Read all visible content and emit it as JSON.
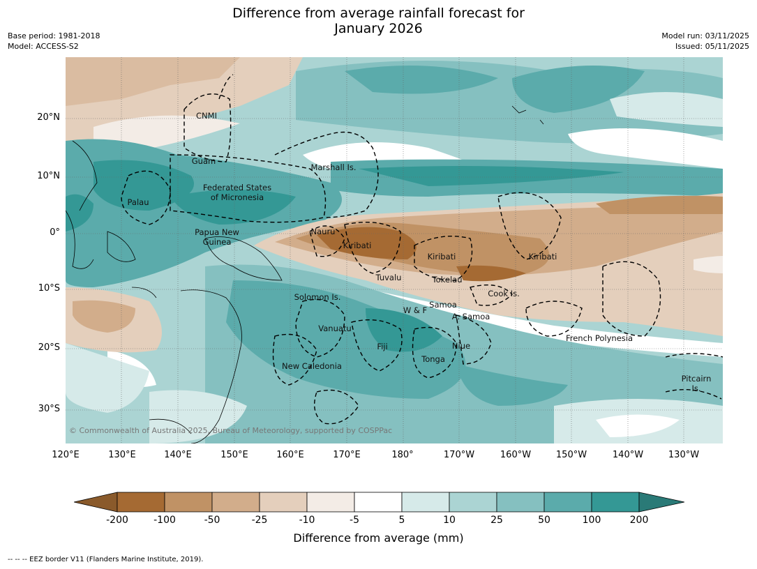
{
  "title": "Difference from average rainfall forecast for\nJanuary 2026",
  "meta_left": "Base period: 1981-2018\nModel: ACCESS-S2",
  "meta_right": "Model run: 03/11/2025\nIssued: 05/11/2025",
  "colors": {
    "dry_200": "#a56a33",
    "dry_100": "#c09265",
    "dry_50": "#d2ad8b",
    "dry_25": "#e4cfbc",
    "dry_10": "#f3ece6",
    "neutral": "#ffffff",
    "wet_5": "#d6eae9",
    "wet_10": "#abd4d3",
    "wet_25": "#85c0c0",
    "wet_50": "#5babab",
    "wet_100": "#349895",
    "wet_200": "#2a7a77",
    "dry_extreme": "#8a5a2b"
  },
  "y_axis": [
    "20°N",
    "10°N",
    "0°",
    "10°S",
    "20°S",
    "30°S"
  ],
  "x_axis": [
    "120°E",
    "130°E",
    "140°E",
    "150°E",
    "160°E",
    "170°E",
    "180°",
    "170°W",
    "160°W",
    "150°W",
    "140°W",
    "130°W"
  ],
  "regions": [
    {
      "name": "CNMI"
    },
    {
      "name": "Guam"
    },
    {
      "name": "Marshall Is."
    },
    {
      "name": "Federated States"
    },
    {
      "name": "of Micronesia"
    },
    {
      "name": "Palau"
    },
    {
      "name": "Papua New"
    },
    {
      "name": "Guinea"
    },
    {
      "name": "Nauru"
    },
    {
      "name": "Kiribati"
    },
    {
      "name": "Kiribati"
    },
    {
      "name": "Kiribati"
    },
    {
      "name": "Tuvalu"
    },
    {
      "name": "Tokelau"
    },
    {
      "name": "Cook Is."
    },
    {
      "name": "Solomon Is."
    },
    {
      "name": "Samoa"
    },
    {
      "name": "W & F"
    },
    {
      "name": "A. Samoa"
    },
    {
      "name": "Vanuatu"
    },
    {
      "name": "Fiji"
    },
    {
      "name": "Niue"
    },
    {
      "name": "Tonga"
    },
    {
      "name": "French Polynesia"
    },
    {
      "name": "New Caledonia"
    },
    {
      "name": "Pitcairn"
    },
    {
      "name": "Is."
    }
  ],
  "copyright": "© Commonwealth of Australia 2025, Bureau of Meteorology, supported by COSPPac",
  "colorbar": {
    "ticks": [
      "-200",
      "-100",
      "-50",
      "-25",
      "-10",
      "-5",
      "5",
      "10",
      "25",
      "50",
      "100",
      "200"
    ],
    "label": "Difference from average (mm)"
  },
  "eez_note": "-- -- -- EEZ border V11 (Flanders Marine Institute, 2019)."
}
